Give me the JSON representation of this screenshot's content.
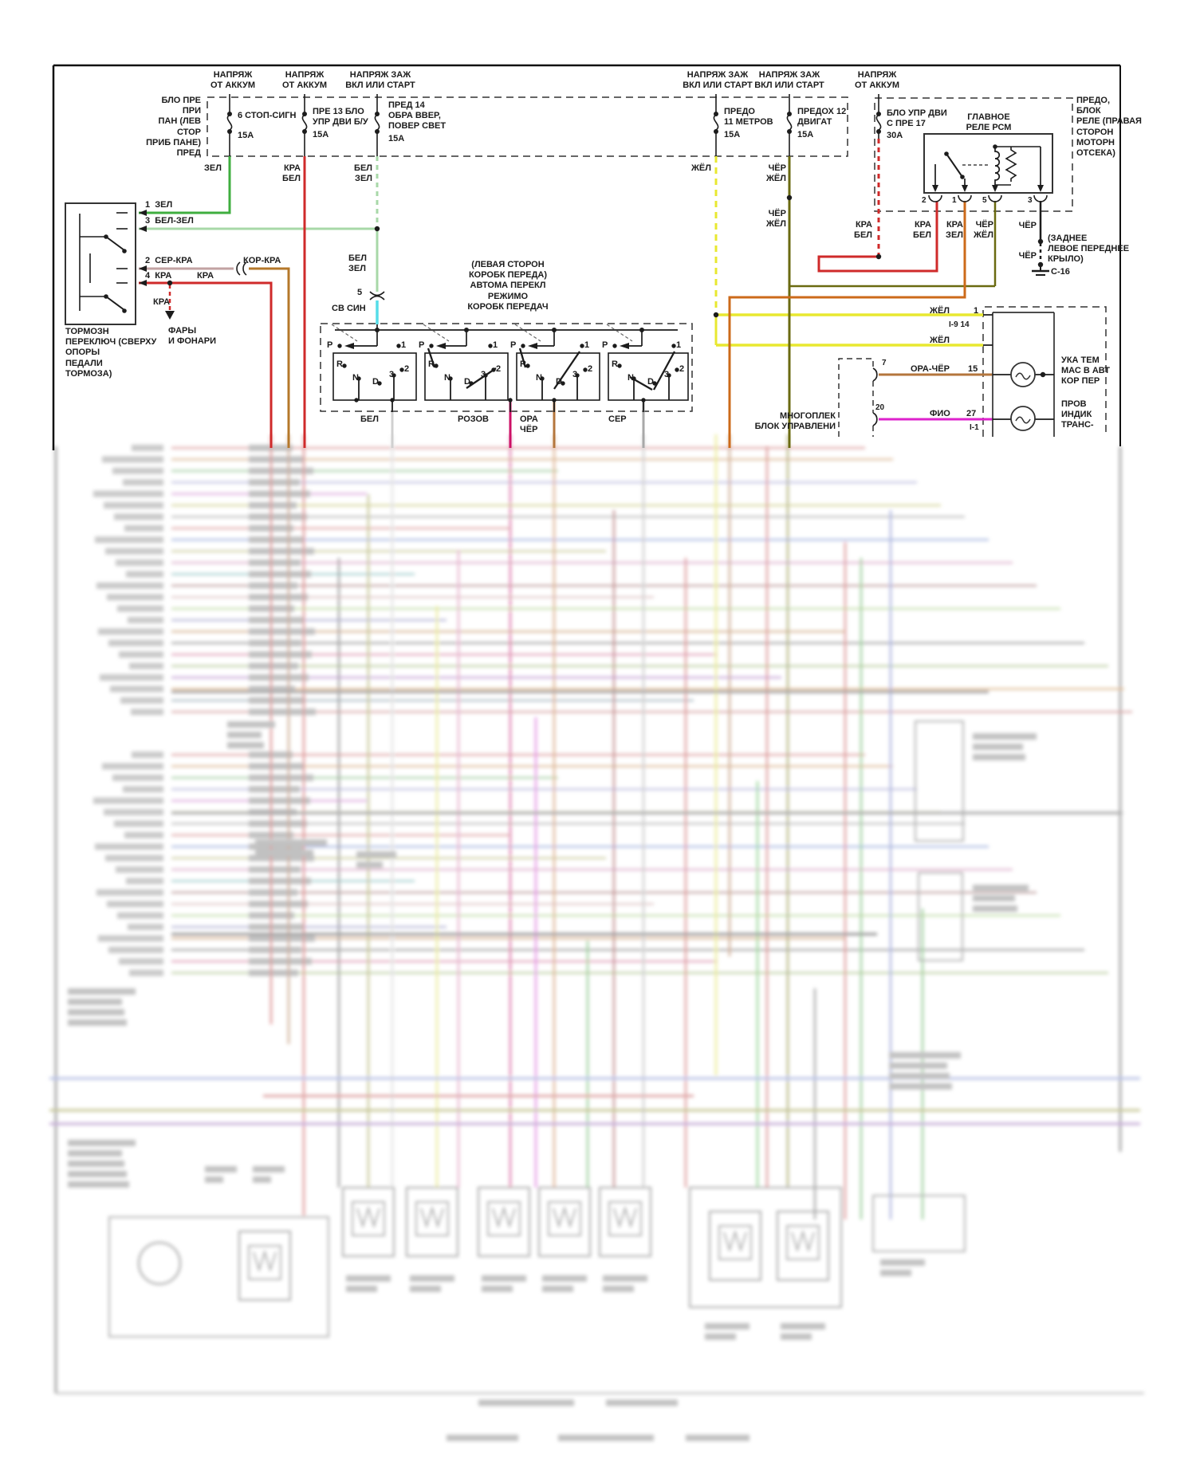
{
  "diagram": {
    "headers": {
      "h1": "НАПРЯЖ\nОТ АККУМ",
      "h2": "НАПРЯЖ\nОТ АККУМ",
      "h3": "НАПРЯЖ ЗАЖ\nВКЛ ИЛИ СТАРТ",
      "h4": "НАПРЯЖ ЗАЖ\nВКЛ ИЛИ СТАРТ",
      "h5": "НАПРЯЖ ЗАЖ\nВКЛ ИЛИ СТАРТ",
      "h6": "НАПРЯЖ\nОТ АККУМ"
    },
    "fuse_block_left": {
      "label": "БЛО ПРЕ\nПРИ\nПАН (ЛЕВ\nСТОР\nПРИБ ПАНЕ)\nПРЕД",
      "fuses": [
        {
          "name": "6 СТОП-СИГН",
          "amp": "15А"
        },
        {
          "name": "ПРЕ 13 БЛО\nУПР ДВИ Б/У",
          "amp": "15А"
        },
        {
          "name": "ПРЕД 14\nОБРА ВВЕР,\nПОВЕР СВЕТ",
          "amp": "15А"
        },
        {
          "name": "ПРЕДО\n11 МЕТРОВ",
          "amp": "15А"
        },
        {
          "name": "ПРЕДОХ 12\nДВИГАТ",
          "amp": "15А"
        }
      ]
    },
    "fuse_block_right": {
      "fuse17": {
        "name": "БЛО УПР ДВИ\nС ПРЕ 17",
        "amp": "30А"
      },
      "relay_title": "ГЛАВНОЕ\nРЕЛЕ РСМ",
      "block_label": "ПРЕДО,\nБЛОК\nРЕЛЕ (ПРАВАЯ\nСТОРОН\nМОТОРН\nОТСЕКА)",
      "pins": [
        "2",
        "1",
        "5",
        "3"
      ]
    },
    "brake_switch": {
      "label": "ТОРМОЗН\nПЕРЕКЛЮЧ (СВЕРХУ\nОПОРЫ\nПЕДАЛИ\nТОРМОЗА)",
      "terminals": [
        "1  ЗЕЛ",
        "3  БЕЛ-ЗЕЛ",
        "2  СЕР-КРА",
        "4  КРА"
      ],
      "kra_mid": "КРА",
      "kra_down": "КРА",
      "korkra": "КОР-КРА",
      "arrow_dest": "ФАРЫ\nИ ФОНАРИ"
    },
    "gearbox_switch": {
      "title": "(ЛЕВАЯ СТОРОН\nКОРОБК ПЕРЕДА)\nАВТОМА ПЕРЕКЛ\nРЕЖИМО\nКОРОБК ПЕРЕДАЧ",
      "letters": [
        "P",
        "1",
        "R",
        "2",
        "N",
        "D",
        "3"
      ],
      "connector_num": "5",
      "svsin": "СВ СИН",
      "belzel_in": "БЕЛ\nЗЕЛ",
      "outputs": [
        "БЕЛ",
        "РОЗОВ",
        "ОРА\nЧЁР",
        "СЕР"
      ]
    },
    "wire_labels": {
      "zel": "ЗЕЛ",
      "kra_bel_f13": "КРА\nБЕЛ",
      "bel_zel_f14": "БЕЛ\nЗЕЛ",
      "zhel_f11": "ЖЁЛ",
      "cher_zhel_f12a": "ЧЁР\nЖЁЛ",
      "cher_zhel_f12b": "ЧЁР\nЖЁЛ",
      "kra_bel_f17": "КРА\nБЕЛ",
      "kra_bel_p2": "КРА\nБЕЛ",
      "kra_zel_p1": "КРА\nЗЕЛ",
      "cher_zhel_p5": "ЧЁР\nЖЁЛ",
      "cher_p3a": "ЧЁР",
      "cher_p3b": "ЧЁР"
    },
    "ground": {
      "label": "(ЗАДНЕЕ\nЛЕВОЕ ПЕРЕДНЕЕ\nКРЫЛО)",
      "code": "С-16"
    },
    "gauge": {
      "zhel1": "ЖЁЛ",
      "num1": "1",
      "ref1": "I-9 14",
      "zhel2": "ЖЁЛ",
      "lamp1_label": "УКА ТЕМ\nМАС В АВТ\nКОР ПЕР",
      "lamp2_label": "ПРОВ\nИНДИК\nТРАНС-"
    },
    "multiplex": {
      "label": "МНОГОПЛЕК\nБЛОК УПРАВЛЕНИ",
      "pin7": "7",
      "pin20": "20",
      "wire15": "ОРА-ЧЁР",
      "num15": "15",
      "wire27": "ФИО",
      "num27": "27",
      "ref27": "I-1"
    },
    "colors": {
      "green": "#3fae3f",
      "light_green": "#a8d8a8",
      "red": "#cf2a2a",
      "orange": "#cc6a1a",
      "yellow": "#e8e830",
      "olive": "#6a6a10",
      "cyan": "#55dde8",
      "pink": "#cc1166",
      "magenta": "#dd22cc",
      "brown": "#b5782a",
      "ora_cher": "#b4763c",
      "ser_kra": "#c2a2a2",
      "white_wire": "#d0d0d0",
      "gray_wire": "#a8a8a8",
      "black": "#222222"
    }
  }
}
